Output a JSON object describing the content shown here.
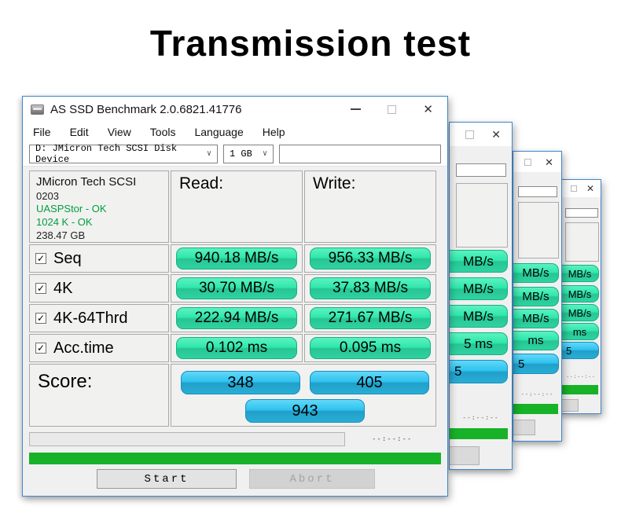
{
  "page_title": "Transmission test",
  "icons": {
    "close": "✕",
    "chevron_down": "∨",
    "check": "✓"
  },
  "window": {
    "title": "AS SSD Benchmark 2.0.6821.41776",
    "menu": [
      "File",
      "Edit",
      "View",
      "Tools",
      "Language",
      "Help"
    ],
    "drive_select": "D: JMicron Tech SCSI Disk Device",
    "size_select": "1 GB",
    "info": {
      "model": "JMicron Tech SCSI",
      "firmware": "0203",
      "driver_status": "UASPStor - OK",
      "alignment_status": "1024 K - OK",
      "capacity": "238.47 GB"
    },
    "columns": {
      "read": "Read:",
      "write": "Write:"
    },
    "rows": [
      {
        "label": "Seq",
        "read": "940.18 MB/s",
        "write": "956.33 MB/s"
      },
      {
        "label": "4K",
        "read": "30.70 MB/s",
        "write": "37.83 MB/s"
      },
      {
        "label": "4K-64Thrd",
        "read": "222.94 MB/s",
        "write": "271.67 MB/s"
      },
      {
        "label": "Acc.time",
        "read": "0.102 ms",
        "write": "0.095 ms"
      }
    ],
    "score": {
      "label": "Score:",
      "read": "348",
      "write": "405",
      "total": "943"
    },
    "time_display": "--:--:--",
    "buttons": {
      "start": "Start",
      "abort": "Abort"
    }
  },
  "background_windows": [
    {
      "pills": [
        "MB/s",
        "MB/s",
        "MB/s",
        "5 ms"
      ],
      "score_pill": "5",
      "time": "--:--:--"
    },
    {
      "pills": [
        "MB/s",
        "MB/s",
        "MB/s",
        "ms"
      ],
      "score_pill": "5",
      "time": "--:--:--"
    },
    {
      "pills": [
        "MB/s",
        "MB/s",
        "MB/s",
        "ms"
      ],
      "score_pill": "5",
      "time": "--:--:--"
    }
  ],
  "colors": {
    "pill_green": "#2fe7ab",
    "pill_blue": "#2ec2ef",
    "progress_green": "#17b228",
    "ok_text_green": "#00a03e",
    "window_border_blue": "#3f87c9"
  }
}
